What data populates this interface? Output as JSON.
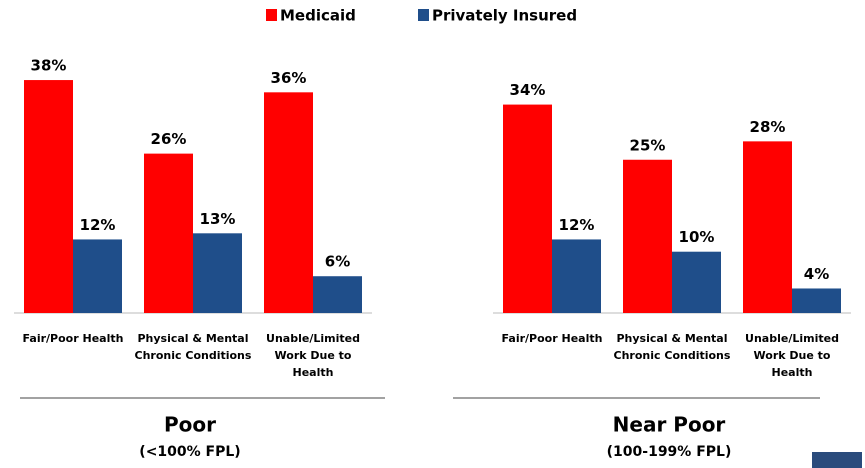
{
  "chart_data": {
    "type": "bar",
    "series": [
      {
        "name": "Medicaid",
        "color": "#ff0000"
      },
      {
        "name": "Privately Insured",
        "color": "#1f4e8a"
      }
    ],
    "panels": [
      {
        "title": "Poor",
        "subtitle": "(<100% FPL)",
        "categories": [
          "Fair/Poor Health",
          "Physical & Mental Chronic Conditions",
          "Unable/Limited Work Due to Health"
        ],
        "values": [
          [
            38,
            26,
            36
          ],
          [
            12,
            13,
            6
          ]
        ],
        "value_labels": [
          [
            "38%",
            "26%",
            "36%"
          ],
          [
            "12%",
            "13%",
            "6%"
          ]
        ]
      },
      {
        "title": "Near Poor",
        "subtitle": "(100-199% FPL)",
        "categories": [
          "Fair/Poor Health",
          "Physical & Mental Chronic Conditions",
          "Unable/Limited Work Due to Health"
        ],
        "values": [
          [
            34,
            25,
            28
          ],
          [
            12,
            10,
            4
          ]
        ],
        "value_labels": [
          [
            "34%",
            "25%",
            "28%"
          ],
          [
            "12%",
            "10%",
            "4%"
          ]
        ]
      }
    ]
  }
}
